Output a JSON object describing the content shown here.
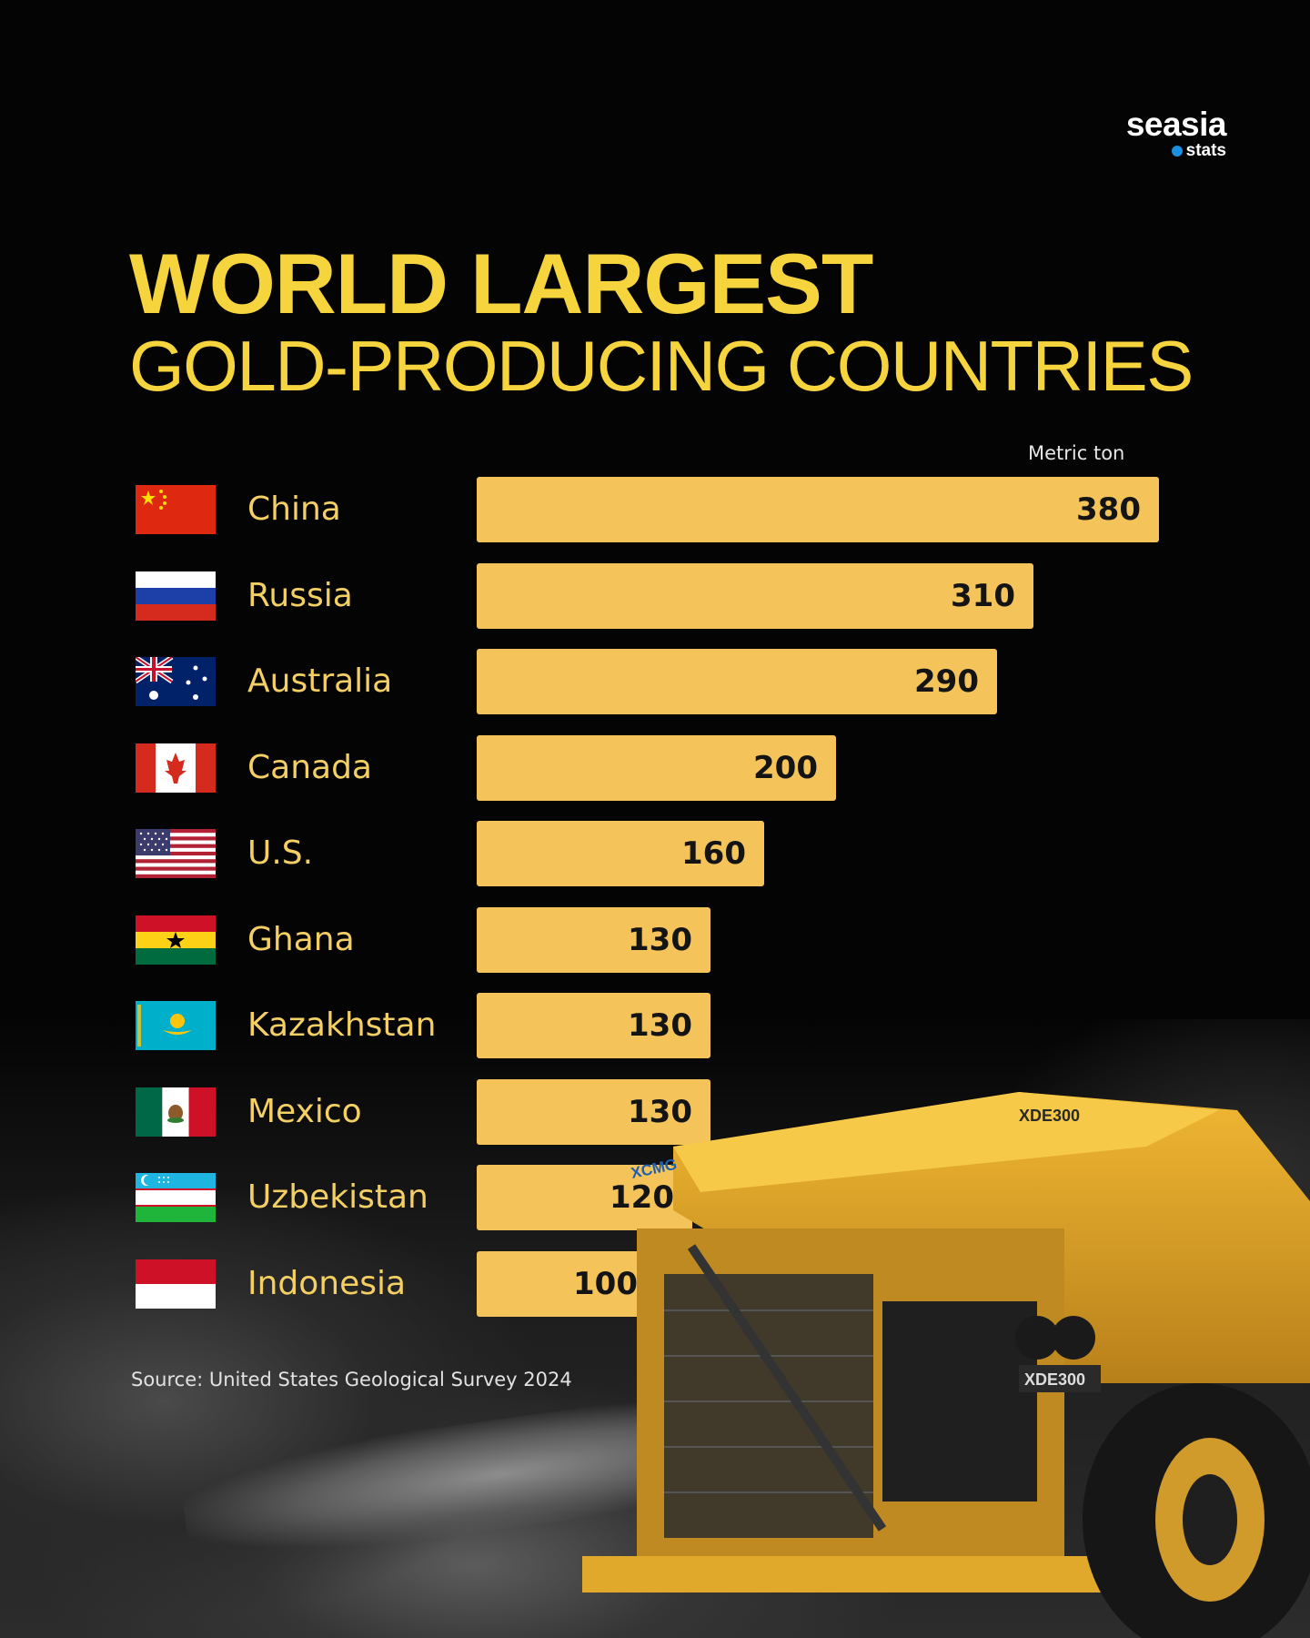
{
  "brand": {
    "name": "seasia",
    "sub": "stats"
  },
  "title": {
    "line1": "WORLD LARGEST",
    "line2": "GOLD-PRODUCING COUNTRIES"
  },
  "unit_label": "Metric ton",
  "source": "Source: United States Geological Survey 2024",
  "colors": {
    "accent": "#f6d43e",
    "bar": "#f4c45a",
    "label": "#f4d064",
    "background": "#040404"
  },
  "truck_labels": {
    "model": "XDE300",
    "brand": "XCMG"
  },
  "chart_data": {
    "type": "bar",
    "orientation": "horizontal",
    "title": "WORLD LARGEST GOLD-PRODUCING COUNTRIES",
    "xlabel": "Metric ton",
    "ylabel": "",
    "xlim": [
      0,
      380
    ],
    "grid": false,
    "categories": [
      "China",
      "Russia",
      "Australia",
      "Canada",
      "U.S.",
      "Ghana",
      "Kazakhstan",
      "Mexico",
      "Uzbekistan",
      "Indonesia"
    ],
    "values": [
      380,
      310,
      290,
      200,
      160,
      130,
      130,
      130,
      120,
      100
    ],
    "flags": [
      "china-flag-icon",
      "russia-flag-icon",
      "australia-flag-icon",
      "canada-flag-icon",
      "us-flag-icon",
      "ghana-flag-icon",
      "kazakhstan-flag-icon",
      "mexico-flag-icon",
      "uzbekistan-flag-icon",
      "indonesia-flag-icon"
    ]
  }
}
